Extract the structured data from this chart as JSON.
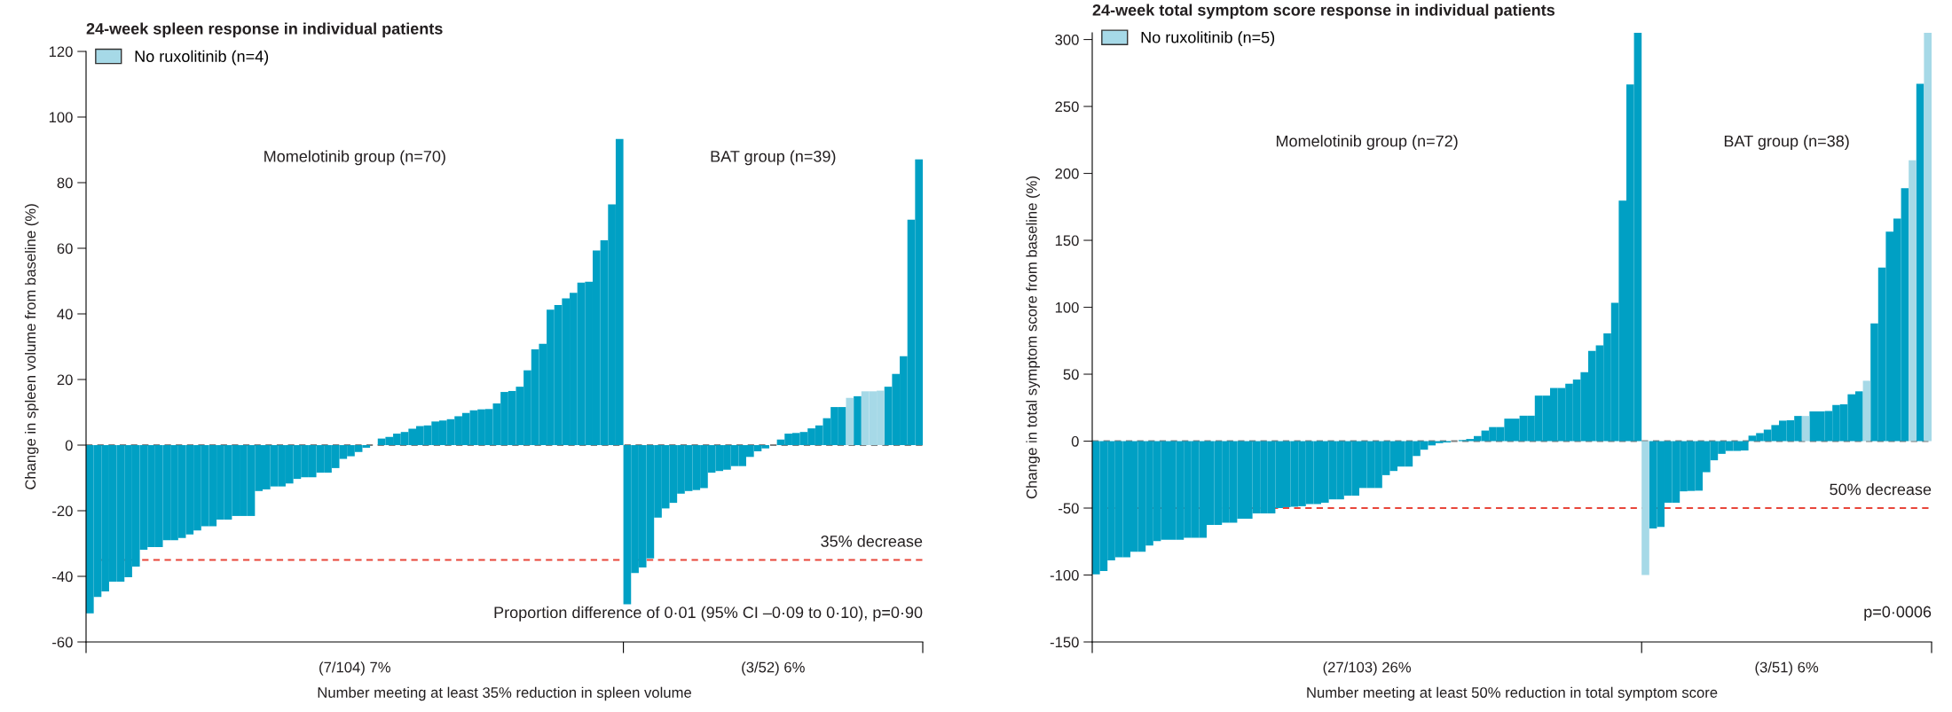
{
  "chart_data": [
    {
      "type": "bar",
      "title": "24-week spleen response in individual patients",
      "ylabel": "Change in spleen volume from baseline (%)",
      "xlabel": "Number meeting at least 35% reduction in spleen volume",
      "categories": [
        null,
        null,
        null,
        null,
        null,
        null,
        null,
        null,
        null,
        null,
        null,
        null,
        null,
        null,
        null,
        null,
        null,
        null,
        null,
        null,
        null,
        null,
        null,
        null,
        null,
        null,
        null,
        null,
        null,
        null,
        null,
        null,
        null,
        null,
        null,
        null,
        null,
        null,
        null,
        null,
        null,
        null,
        null,
        null,
        null,
        null,
        null,
        null,
        null,
        null,
        null,
        null,
        null,
        null,
        null,
        null,
        null,
        null,
        null,
        null,
        null,
        null,
        null,
        null,
        null,
        null,
        null,
        null,
        null,
        null,
        null,
        null,
        null,
        null,
        null,
        null,
        null,
        null,
        null,
        null,
        null,
        null,
        null,
        null,
        null,
        null,
        null,
        null,
        null,
        null,
        null,
        null,
        null,
        null,
        null,
        null,
        null,
        null,
        null,
        null,
        null,
        null,
        null,
        null,
        null,
        null,
        null,
        null,
        null
      ],
      "series": [
        {
          "color": "#00a0c4",
          "values": [
            -51.3,
            -46.3,
            -44.6,
            -41.6,
            -41.6,
            -40.3,
            -37,
            -31.9,
            -31.1,
            -31.1,
            -29,
            -29,
            -28.3,
            -27.2,
            -26,
            -24.7,
            -24.7,
            -22.7,
            -22.7,
            -21.6,
            -21.6,
            -21.6,
            -14,
            -13.5,
            -12.6,
            -12.6,
            -11.7,
            -10.3,
            -9.8,
            -9.8,
            -8.4,
            -8.4,
            -7,
            -4.2,
            -3.4,
            -2.1,
            -0.8,
            0,
            2.0,
            2.5,
            3.5,
            4.0,
            5.0,
            5.8,
            6.0,
            7.2,
            7.5,
            7.9,
            8.8,
            9.8,
            10.6,
            10.9,
            11.0,
            12.7,
            16.2,
            16.5,
            17.8,
            22.8,
            29.2,
            30.9,
            41.3,
            42.7,
            44.7,
            46.4,
            49.5,
            49.8,
            59.3,
            62.4,
            73.4,
            93.3,
            null,
            null,
            null,
            null,
            null,
            null,
            null,
            null,
            null,
            null,
            null,
            null,
            null,
            null,
            null,
            null,
            null,
            null,
            null,
            null,
            null,
            null,
            null,
            null,
            null,
            null,
            null,
            null,
            null,
            null,
            null,
            null,
            null,
            null,
            null,
            null,
            null,
            null,
            null
          ]
        },
        {
          "color": "#00a0c4",
          "values": [
            null,
            null,
            null,
            null,
            null,
            null,
            null,
            null,
            null,
            null,
            null,
            null,
            null,
            null,
            null,
            null,
            null,
            null,
            null,
            null,
            null,
            null,
            null,
            null,
            null,
            null,
            null,
            null,
            null,
            null,
            null,
            null,
            null,
            null,
            null,
            null,
            null,
            null,
            null,
            null,
            null,
            null,
            null,
            null,
            null,
            null,
            null,
            null,
            null,
            null,
            null,
            null,
            null,
            null,
            null,
            null,
            null,
            null,
            null,
            null,
            null,
            null,
            null,
            null,
            null,
            null,
            null,
            null,
            null,
            null,
            -48.5,
            -39,
            -37.3,
            -34.5,
            -22.1,
            -19.3,
            -17.6,
            -14.8,
            -14,
            -13.7,
            -13.1,
            -8.4,
            -7.9,
            -7.5,
            -6.4,
            -6.4,
            -3.6,
            -1.9,
            -1.0,
            0,
            1.7,
            3.5,
            3.7,
            4.0,
            5.1,
            6.0,
            8.2,
            11.6,
            11.6,
            null,
            14.9,
            null,
            null,
            null,
            17.8,
            21.7,
            27.1,
            68.7,
            87.1
          ]
        },
        {
          "name": "No ruxolitinib (n=4)",
          "color": "#a6d9e7",
          "values": [
            null,
            null,
            null,
            null,
            null,
            null,
            null,
            null,
            null,
            null,
            null,
            null,
            null,
            null,
            null,
            null,
            null,
            null,
            null,
            null,
            null,
            null,
            null,
            null,
            null,
            null,
            null,
            null,
            null,
            null,
            null,
            null,
            null,
            null,
            null,
            null,
            null,
            null,
            null,
            null,
            null,
            null,
            null,
            null,
            null,
            null,
            null,
            null,
            null,
            null,
            null,
            null,
            null,
            null,
            null,
            null,
            null,
            null,
            null,
            null,
            null,
            null,
            null,
            null,
            null,
            null,
            null,
            null,
            null,
            null,
            null,
            null,
            null,
            null,
            null,
            null,
            null,
            null,
            null,
            null,
            null,
            null,
            null,
            null,
            null,
            null,
            null,
            null,
            null,
            null,
            null,
            null,
            null,
            null,
            null,
            null,
            null,
            null,
            null,
            14.4,
            null,
            16.4,
            16.4,
            16.6,
            null,
            null,
            null,
            null,
            null
          ]
        }
      ],
      "ylim": [
        -60,
        120
      ],
      "yticks": [
        -60,
        -40,
        -20,
        0,
        20,
        40,
        60,
        80,
        100,
        120
      ],
      "tick_labels": "y",
      "legend": "top left",
      "ref_lines": [
        {
          "axis": "y",
          "value": 0,
          "color": "#7f7f7f",
          "line_style": "dashed"
        },
        {
          "axis": "y",
          "value": -35,
          "color": "#e8463a",
          "line_style": "dashed",
          "label": "35% decrease"
        }
      ],
      "annotations": [
        "Momelotinib group (n=70)",
        "BAT group (n=39)",
        "(7/104) 7%",
        "(3/52) 6%",
        "Proportion difference of 0·01 (95% CI –0·09 to 0·10), p=0·90"
      ]
    },
    {
      "type": "bar",
      "title": "24-week total symptom score response in individual patients",
      "ylabel": "Change in total symptom score from baseline (%)",
      "xlabel": "Number meeting at least 50% reduction in total symptom score",
      "categories": [
        null,
        null,
        null,
        null,
        null,
        null,
        null,
        null,
        null,
        null,
        null,
        null,
        null,
        null,
        null,
        null,
        null,
        null,
        null,
        null,
        null,
        null,
        null,
        null,
        null,
        null,
        null,
        null,
        null,
        null,
        null,
        null,
        null,
        null,
        null,
        null,
        null,
        null,
        null,
        null,
        null,
        null,
        null,
        null,
        null,
        null,
        null,
        null,
        null,
        null,
        null,
        null,
        null,
        null,
        null,
        null,
        null,
        null,
        null,
        null,
        null,
        null,
        null,
        null,
        null,
        null,
        null,
        null,
        null,
        null,
        null,
        null,
        null,
        null,
        null,
        null,
        null,
        null,
        null,
        null,
        null,
        null,
        null,
        null,
        null,
        null,
        null,
        null,
        null,
        null,
        null,
        null,
        null,
        null,
        null,
        null,
        null,
        null,
        null,
        null,
        null,
        null,
        null,
        null,
        null,
        null,
        null,
        null,
        null,
        null
      ],
      "series": [
        {
          "color": "#00a0c4",
          "values": [
            -99.5,
            -97,
            -89,
            -86.8,
            -86.8,
            -82.6,
            -82.6,
            -77.9,
            -74.7,
            -73.7,
            -73.7,
            -73.7,
            -72.2,
            -72.2,
            -72.2,
            -62.5,
            -62.5,
            -61,
            -61,
            -58,
            -58,
            -54,
            -54,
            -54,
            -50,
            -49.3,
            -49,
            -48.6,
            -47,
            -47,
            -46,
            -43.5,
            -43.5,
            -40.7,
            -40.7,
            -35,
            -35,
            -35,
            -25.4,
            -22.3,
            -19,
            -19,
            -11.1,
            -6.4,
            -3.2,
            -1.5,
            -1,
            0,
            0.8,
            1.6,
            3.8,
            7.9,
            10.5,
            10.5,
            16.8,
            16.8,
            19,
            19,
            34,
            34,
            39.7,
            39.7,
            42.9,
            46,
            51.5,
            67.4,
            71.5,
            80.4,
            103.3,
            179.6,
            266.4,
            305,
            null,
            null,
            null,
            null,
            null,
            null,
            null,
            null,
            null,
            null,
            null,
            null,
            null,
            null,
            null,
            null,
            null,
            null,
            null,
            null,
            null,
            null,
            null,
            null,
            null,
            null,
            null,
            null,
            null,
            null,
            null,
            null,
            null,
            null,
            null,
            null,
            null,
            null
          ]
        },
        {
          "color": "#00a0c4",
          "values": [
            null,
            null,
            null,
            null,
            null,
            null,
            null,
            null,
            null,
            null,
            null,
            null,
            null,
            null,
            null,
            null,
            null,
            null,
            null,
            null,
            null,
            null,
            null,
            null,
            null,
            null,
            null,
            null,
            null,
            null,
            null,
            null,
            null,
            null,
            null,
            null,
            null,
            null,
            null,
            null,
            null,
            null,
            null,
            null,
            null,
            null,
            null,
            null,
            null,
            null,
            null,
            null,
            null,
            null,
            null,
            null,
            null,
            null,
            null,
            null,
            null,
            null,
            null,
            null,
            null,
            null,
            null,
            null,
            null,
            null,
            null,
            null,
            null,
            -65.2,
            -64,
            -46,
            -46,
            -37.5,
            -37.2,
            -37,
            -23.2,
            -14.3,
            -9.5,
            -7.3,
            -7.3,
            -7,
            4.1,
            6,
            8.6,
            12,
            15.3,
            15.6,
            18.8,
            null,
            22.2,
            22.2,
            22.5,
            27,
            27.5,
            35,
            37.2,
            null,
            88,
            129.7,
            156.4,
            166.2,
            189,
            null,
            267,
            null
          ]
        },
        {
          "name": "No ruxolitinib (n=5)",
          "color": "#a6d9e7",
          "values": [
            null,
            null,
            null,
            null,
            null,
            null,
            null,
            null,
            null,
            null,
            null,
            null,
            null,
            null,
            null,
            null,
            null,
            null,
            null,
            null,
            null,
            null,
            null,
            null,
            null,
            null,
            null,
            null,
            null,
            null,
            null,
            null,
            null,
            null,
            null,
            null,
            null,
            null,
            null,
            null,
            null,
            null,
            null,
            null,
            null,
            null,
            null,
            null,
            null,
            null,
            null,
            null,
            null,
            null,
            null,
            null,
            null,
            null,
            null,
            null,
            null,
            null,
            null,
            null,
            null,
            null,
            null,
            null,
            null,
            null,
            null,
            null,
            -100,
            null,
            null,
            null,
            null,
            null,
            null,
            null,
            null,
            null,
            null,
            null,
            null,
            null,
            null,
            null,
            null,
            null,
            null,
            null,
            null,
            18.8,
            null,
            null,
            null,
            null,
            null,
            null,
            null,
            45.1,
            null,
            null,
            null,
            null,
            null,
            209.8,
            null,
            305
          ]
        }
      ],
      "ylim": [
        -150,
        305
      ],
      "yticks": [
        -150,
        -100,
        -50,
        0,
        50,
        100,
        150,
        200,
        250,
        300
      ],
      "tick_labels": "y",
      "legend": "top left",
      "ref_lines": [
        {
          "axis": "y",
          "value": 0,
          "color": "#7f7f7f",
          "line_style": "dashed"
        },
        {
          "axis": "y",
          "value": -50,
          "color": "#e8463a",
          "line_style": "dashed",
          "label": "50% decrease"
        }
      ],
      "annotations": [
        "Momelotinib group (n=72)",
        "BAT group (n=38)",
        "(27/103) 26%",
        "(3/51) 6%",
        "p=0·0006"
      ]
    }
  ]
}
